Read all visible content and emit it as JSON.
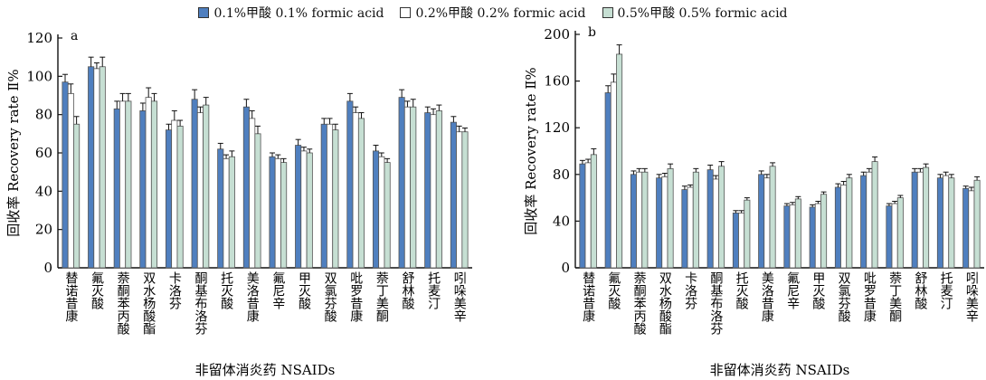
{
  "legend": [
    {
      "label": "0.1%甲酸 0.1% formic acid",
      "color": "#4f7fbf",
      "marker": "■"
    },
    {
      "label": "0.2%甲酸 0.2% formic acid",
      "color": "#ffffff",
      "marker": "□"
    },
    {
      "label": "0.5%甲酸 0.5% formic acid",
      "color": "#c6dfd3",
      "marker": "■"
    }
  ],
  "chart_data": [
    {
      "type": "bar",
      "panel_label": "a",
      "xlabel": "非留体消炎药 NSAIDs",
      "ylabel": "回收率 Recovery rate Ⅱ%",
      "ylim": [
        0,
        120
      ],
      "yticks": [
        0,
        20,
        40,
        60,
        80,
        100,
        120
      ],
      "grid": false,
      "legend_position": "top-center",
      "categories": [
        "替诺昔康",
        "氟灭酸",
        "萘酮苯丙酸",
        "双水杨酸酯",
        "卡洛芬",
        "酮基布洛芬",
        "托灭酸",
        "美洛昔康",
        "氟尼辛",
        "甲灭酸",
        "双氯芬酸",
        "吡罗昔康",
        "萘丁美酮",
        "舒林酸",
        "托麦汀",
        "吲哚美辛"
      ],
      "series": [
        {
          "name": "0.1%甲酸 0.1% formic acid",
          "color": "#4f7fbf",
          "values": [
            97,
            105,
            83,
            82,
            72,
            88,
            62,
            84,
            58,
            64,
            75,
            87,
            61,
            89,
            81,
            76
          ],
          "errors": [
            4,
            5,
            4,
            4,
            3,
            5,
            3,
            4,
            2,
            3,
            3,
            4,
            3,
            4,
            3,
            3
          ]
        },
        {
          "name": "0.2%甲酸 0.2% formic acid",
          "color": "#ffffff",
          "values": [
            91,
            104,
            87,
            89,
            77,
            81,
            57,
            78,
            57,
            61,
            75,
            81,
            58,
            84,
            80,
            71
          ],
          "errors": [
            5,
            3,
            4,
            5,
            5,
            3,
            2,
            4,
            2,
            2,
            3,
            3,
            2,
            3,
            3,
            3
          ]
        },
        {
          "name": "0.5%甲酸 0.5% formic acid",
          "color": "#c6dfd3",
          "values": [
            75,
            105,
            87,
            87,
            74,
            85,
            58,
            70,
            55,
            60,
            72,
            78,
            55,
            84,
            82,
            71
          ],
          "errors": [
            4,
            5,
            4,
            4,
            3,
            4,
            3,
            4,
            2,
            2,
            3,
            3,
            2,
            4,
            3,
            2
          ]
        }
      ]
    },
    {
      "type": "bar",
      "panel_label": "b",
      "xlabel": "非留体消炎药 NSAIDs",
      "ylabel": "回收率 Recovery rate Ⅱ%",
      "ylim": [
        0,
        200
      ],
      "yticks": [
        0,
        40,
        80,
        120,
        160,
        200
      ],
      "grid": false,
      "categories": [
        "替诺昔康",
        "氟灭酸",
        "萘酮苯丙酸",
        "双水杨酸酯",
        "卡洛芬",
        "酮基布洛芬",
        "托灭酸",
        "美洛昔康",
        "氟尼辛",
        "甲灭酸",
        "双氯芬酸",
        "吡罗昔康",
        "萘丁美酮",
        "舒林酸",
        "托麦汀",
        "吲哚美辛"
      ],
      "series": [
        {
          "name": "0.1%甲酸 0.1% formic acid",
          "color": "#4f7fbf",
          "values": [
            89,
            150,
            80,
            77,
            67,
            84,
            47,
            80,
            53,
            52,
            69,
            79,
            53,
            82,
            77,
            68
          ],
          "errors": [
            3,
            6,
            3,
            3,
            3,
            4,
            2,
            3,
            2,
            2,
            3,
            3,
            2,
            3,
            3,
            2
          ]
        },
        {
          "name": "0.2%甲酸 0.2% formic acid",
          "color": "#ffffff",
          "values": [
            90,
            159,
            82,
            78,
            69,
            76,
            47,
            77,
            54,
            55,
            71,
            82,
            55,
            82,
            79,
            66
          ],
          "errors": [
            3,
            7,
            3,
            3,
            2,
            3,
            2,
            3,
            2,
            2,
            3,
            3,
            2,
            3,
            3,
            3
          ]
        },
        {
          "name": "0.5%甲酸 0.5% formic acid",
          "color": "#c6dfd3",
          "values": [
            97,
            183,
            82,
            85,
            82,
            87,
            58,
            87,
            59,
            63,
            77,
            91,
            60,
            86,
            77,
            75
          ],
          "errors": [
            5,
            8,
            3,
            4,
            3,
            4,
            2,
            3,
            2,
            2,
            3,
            4,
            2,
            3,
            3,
            3
          ]
        }
      ]
    }
  ]
}
